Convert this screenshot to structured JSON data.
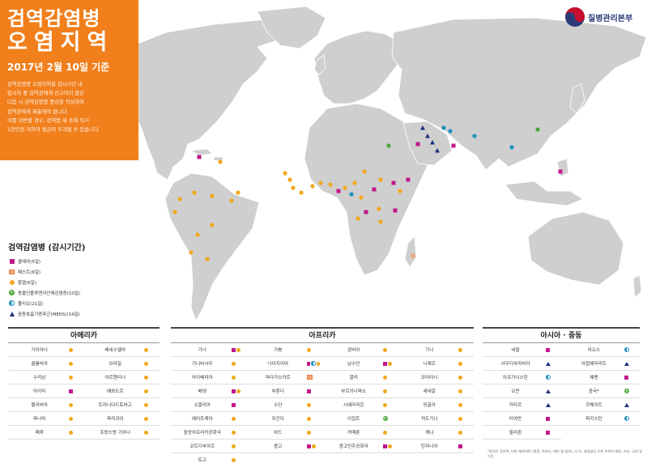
{
  "title": {
    "line1": "검역감염병",
    "line2": "오염지역",
    "date": "2017년 2월 10일 기준",
    "note": [
      "검역감염병 오염지역을 감시기간 내",
      "입국자 중 검역관에게 신고하지 않은",
      "다음 시 검역감염병 증상을 작성하여",
      "검역관에게 제출해야 합니다.",
      "이를 위반할 경우, 검역법 제 조에 의거",
      "1천만원 이하의 벌금이 부과될 수 있습니다"
    ]
  },
  "agency": {
    "name": "질병관리본부"
  },
  "colors": {
    "accent": "#f07f1c",
    "land": "#cfcfcf",
    "cholera": "#c2188b",
    "pest": "#f4a77a",
    "yellow_fever": "#f2a81d",
    "avian": "#4da63a",
    "polio": "#1e8fbf",
    "mers": "#1f2f7a"
  },
  "legend": {
    "heading": "검역감염병 (감시기간)",
    "items": [
      {
        "key": "cholera",
        "label": "콜레라(5일)",
        "icon": "square-icon"
      },
      {
        "key": "pest",
        "label": "페스트(6일)",
        "icon": "pest-icon"
      },
      {
        "key": "yellow_fever",
        "label": "황열(6일)",
        "icon": "circle-icon"
      },
      {
        "key": "avian",
        "label": "동물인플루엔자인체감염증(10일)",
        "icon": "plus-circle-icon"
      },
      {
        "key": "polio",
        "label": "폴리오(21일)",
        "icon": "half-circle-icon"
      },
      {
        "key": "mers",
        "label": "중동호흡기증후군(MERS)(14일)",
        "icon": "triangle-icon"
      }
    ]
  },
  "regions": {
    "americas": {
      "title": "아메리카",
      "countries": [
        {
          "name": "가이아나",
          "codes": [
            "yellow_fever"
          ]
        },
        {
          "name": "베네수엘라",
          "codes": [
            "yellow_fever"
          ]
        },
        {
          "name": "콜롬비아",
          "codes": [
            "yellow_fever"
          ]
        },
        {
          "name": "브라질",
          "codes": [
            "yellow_fever"
          ]
        },
        {
          "name": "수리남",
          "codes": [
            "yellow_fever"
          ]
        },
        {
          "name": "아르헨티나",
          "codes": [
            "yellow_fever"
          ]
        },
        {
          "name": "아이티",
          "codes": [
            "cholera"
          ]
        },
        {
          "name": "에콰도르",
          "codes": [
            "yellow_fever"
          ]
        },
        {
          "name": "볼리비아",
          "codes": [
            "yellow_fever"
          ]
        },
        {
          "name": "트리니다드토바고",
          "codes": [
            "yellow_fever"
          ]
        },
        {
          "name": "파나마",
          "codes": [
            "yellow_fever"
          ]
        },
        {
          "name": "파라과이",
          "codes": [
            "yellow_fever"
          ]
        },
        {
          "name": "페루",
          "codes": [
            "yellow_fever"
          ]
        },
        {
          "name": "프랑스령 기아나",
          "codes": [
            "yellow_fever"
          ]
        }
      ]
    },
    "africa": {
      "title": "아프리카",
      "countries": [
        {
          "name": "가나",
          "codes": [
            "cholera",
            "yellow_fever"
          ]
        },
        {
          "name": "가봉",
          "codes": [
            "yellow_fever"
          ]
        },
        {
          "name": "감비아",
          "codes": [
            "yellow_fever"
          ]
        },
        {
          "name": "기니",
          "codes": [
            "yellow_fever"
          ]
        },
        {
          "name": "기니비사우",
          "codes": [
            "yellow_fever"
          ]
        },
        {
          "name": "나이지리아",
          "codes": [
            "cholera",
            "polio",
            "yellow_fever"
          ]
        },
        {
          "name": "남수단",
          "codes": [
            "cholera",
            "yellow_fever"
          ]
        },
        {
          "name": "니제르",
          "codes": [
            "yellow_fever"
          ]
        },
        {
          "name": "라이베리아",
          "codes": [
            "yellow_fever"
          ]
        },
        {
          "name": "마다가스카르",
          "codes": [
            "pest"
          ]
        },
        {
          "name": "말리",
          "codes": [
            "yellow_fever"
          ]
        },
        {
          "name": "모리타니",
          "codes": [
            "yellow_fever"
          ]
        },
        {
          "name": "베냉",
          "codes": [
            "cholera",
            "yellow_fever"
          ]
        },
        {
          "name": "부룬디",
          "codes": [
            "cholera"
          ]
        },
        {
          "name": "부르키나파소",
          "codes": [
            "yellow_fever"
          ]
        },
        {
          "name": "세네갈",
          "codes": [
            "yellow_fever"
          ]
        },
        {
          "name": "소말리아",
          "codes": [
            "cholera"
          ]
        },
        {
          "name": "수단",
          "codes": [
            "yellow_fever"
          ]
        },
        {
          "name": "시에라리온",
          "codes": [
            "yellow_fever"
          ]
        },
        {
          "name": "앙골라",
          "codes": [
            "yellow_fever"
          ]
        },
        {
          "name": "에리트레아",
          "codes": [
            "yellow_fever"
          ]
        },
        {
          "name": "우간다",
          "codes": [
            "yellow_fever"
          ]
        },
        {
          "name": "이집트",
          "codes": [
            "avian"
          ]
        },
        {
          "name": "적도기니",
          "codes": [
            "yellow_fever"
          ]
        },
        {
          "name": "중앙아프리카공화국",
          "codes": [
            "yellow_fever"
          ]
        },
        {
          "name": "차드",
          "codes": [
            "yellow_fever"
          ]
        },
        {
          "name": "카메룬",
          "codes": [
            "yellow_fever"
          ]
        },
        {
          "name": "케냐",
          "codes": [
            "yellow_fever"
          ]
        },
        {
          "name": "코트디부아르",
          "codes": [
            "yellow_fever"
          ]
        },
        {
          "name": "콩고",
          "codes": [
            "cholera",
            "yellow_fever"
          ]
        },
        {
          "name": "콩고민주공화국",
          "codes": [
            "cholera",
            "yellow_fever"
          ]
        },
        {
          "name": "탄자니아",
          "codes": [
            "cholera"
          ]
        },
        {
          "name": "토고",
          "codes": [
            "yellow_fever"
          ]
        }
      ]
    },
    "asia": {
      "title": "아시아 · 중동",
      "countries": [
        {
          "name": "네팔",
          "codes": [
            "cholera"
          ]
        },
        {
          "name": "라오스",
          "codes": [
            "polio"
          ]
        },
        {
          "name": "사우디아라비아",
          "codes": [
            "mers"
          ]
        },
        {
          "name": "아랍에미리트",
          "codes": [
            "mers"
          ]
        },
        {
          "name": "아프가니스탄",
          "codes": [
            "polio"
          ]
        },
        {
          "name": "예멘",
          "codes": [
            "cholera"
          ]
        },
        {
          "name": "오만",
          "codes": [
            "mers"
          ]
        },
        {
          "name": "중국*",
          "codes": [
            "avian"
          ]
        },
        {
          "name": "카타르",
          "codes": [
            "mers"
          ]
        },
        {
          "name": "쿠웨이트",
          "codes": [
            "mers"
          ]
        },
        {
          "name": "티야반",
          "codes": [
            "cholera"
          ]
        },
        {
          "name": "파키스탄",
          "codes": [
            "polio"
          ]
        },
        {
          "name": "필리핀",
          "codes": [
            "cholera"
          ]
        }
      ]
    }
  },
  "footnote": "*중국은 전지역, 다만 제외지역 (홍콩, 마카오, 대만 및 일부), 시·도, 충청남도 이하 ※뭐러 제한, 기타, 국외 및 기간"
}
